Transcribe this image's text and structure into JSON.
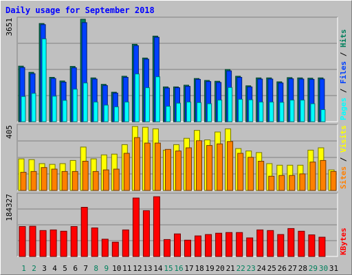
{
  "title": "Daily usage for September 2018",
  "colors": {
    "background": "#c0c0c0",
    "pages": "#00ffff",
    "files": "#0040ff",
    "hits": "#00805c",
    "visits": "#ffff00",
    "sites": "#ff8000",
    "kbytes": "#ff0000",
    "weekday_label": "#000000",
    "weekend_label": "#00805c"
  },
  "chart_data": [
    {
      "type": "bar",
      "panel": "hits_files_pages",
      "ymax_label": "3651",
      "ylim": [
        0,
        3651
      ],
      "categories": [
        "1",
        "2",
        "3",
        "4",
        "5",
        "6",
        "7",
        "8",
        "9",
        "10",
        "11",
        "12",
        "13",
        "14",
        "15",
        "16",
        "17",
        "18",
        "19",
        "20",
        "21",
        "22",
        "23",
        "24",
        "25",
        "26",
        "27",
        "28",
        "29",
        "30",
        "31"
      ],
      "weekend_days": [
        "1",
        "2",
        "8",
        "9",
        "15",
        "16",
        "22",
        "23",
        "29",
        "30"
      ],
      "grid": true,
      "legend_text": [
        {
          "text": "Hits",
          "color": "#00805c"
        },
        {
          "text": "Files",
          "color": "#0040ff"
        },
        {
          "text": "Pages",
          "color": "#00ffff"
        }
      ],
      "series": [
        {
          "name": "Hits",
          "values": [
            1980,
            1760,
            3500,
            1580,
            1450,
            1970,
            3650,
            1560,
            1330,
            1050,
            1620,
            2760,
            2270,
            3050,
            1240,
            1240,
            1300,
            1540,
            1470,
            1440,
            1860,
            1620,
            1280,
            1560,
            1560,
            1420,
            1570,
            1560,
            1550,
            1560,
            0
          ]
        },
        {
          "name": "Files",
          "values": [
            1930,
            1710,
            3460,
            1540,
            1410,
            1920,
            3530,
            1520,
            1290,
            1020,
            1580,
            2710,
            2230,
            3010,
            1200,
            1210,
            1260,
            1510,
            1430,
            1400,
            1810,
            1580,
            1240,
            1520,
            1520,
            1380,
            1530,
            1520,
            1510,
            1520,
            0
          ]
        },
        {
          "name": "Pages",
          "values": [
            900,
            1010,
            2950,
            910,
            760,
            1160,
            1380,
            700,
            590,
            530,
            700,
            1700,
            1210,
            1600,
            550,
            660,
            700,
            680,
            640,
            770,
            1220,
            800,
            780,
            700,
            700,
            690,
            770,
            770,
            640,
            430,
            0
          ]
        }
      ]
    },
    {
      "type": "bar",
      "panel": "visits_sites",
      "ymax_label": "405",
      "ylim": [
        0,
        405
      ],
      "categories": [
        "1",
        "2",
        "3",
        "4",
        "5",
        "6",
        "7",
        "8",
        "9",
        "10",
        "11",
        "12",
        "13",
        "14",
        "15",
        "16",
        "17",
        "18",
        "19",
        "20",
        "21",
        "22",
        "23",
        "24",
        "25",
        "26",
        "27",
        "28",
        "29",
        "30",
        "31"
      ],
      "grid": true,
      "legend_text": [
        {
          "text": "Visits",
          "color": "#ffff00"
        },
        {
          "text": "Sites",
          "color": "#ff8000"
        }
      ],
      "series": [
        {
          "name": "Visits",
          "values": [
            200,
            195,
            170,
            165,
            170,
            190,
            275,
            200,
            225,
            230,
            290,
            405,
            400,
            390,
            255,
            290,
            330,
            380,
            320,
            370,
            390,
            265,
            250,
            240,
            170,
            160,
            160,
            160,
            255,
            270,
            130
          ]
        },
        {
          "name": "Sites",
          "values": [
            115,
            120,
            145,
            135,
            120,
            120,
            185,
            120,
            130,
            135,
            235,
            335,
            300,
            300,
            260,
            250,
            270,
            315,
            285,
            295,
            310,
            235,
            210,
            185,
            90,
            95,
            95,
            105,
            180,
            190,
            120
          ]
        }
      ]
    },
    {
      "type": "bar",
      "panel": "kbytes",
      "ymax_label": "184327",
      "ylim": [
        0,
        184327
      ],
      "categories": [
        "1",
        "2",
        "3",
        "4",
        "5",
        "6",
        "7",
        "8",
        "9",
        "10",
        "11",
        "12",
        "13",
        "14",
        "15",
        "16",
        "17",
        "18",
        "19",
        "20",
        "21",
        "22",
        "23",
        "24",
        "25",
        "26",
        "27",
        "28",
        "29",
        "30",
        "31"
      ],
      "grid": true,
      "legend_text": [
        {
          "text": "KBytes",
          "color": "#ff0000"
        }
      ],
      "series": [
        {
          "name": "KBytes",
          "values": [
            90000,
            91000,
            78000,
            80000,
            76000,
            90000,
            148000,
            86000,
            52000,
            43000,
            80000,
            176000,
            138000,
            180000,
            51000,
            68000,
            49000,
            62000,
            66000,
            70000,
            72000,
            72000,
            56000,
            80000,
            78000,
            66000,
            84000,
            76000,
            65000,
            58000,
            0
          ]
        }
      ]
    }
  ]
}
